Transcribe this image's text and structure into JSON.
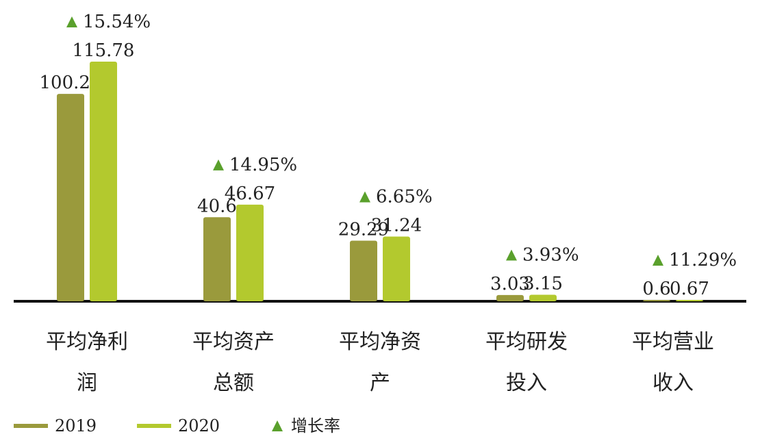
{
  "chart_data": {
    "type": "bar",
    "categories": [
      "平均净利润",
      "平均资产总额",
      "平均净资产",
      "平均研发投入",
      "平均营业收入"
    ],
    "series": [
      {
        "name": "2019",
        "color": "#9a9a3c",
        "values": [
          100.21,
          40.6,
          29.29,
          3.03,
          0.6
        ]
      },
      {
        "name": "2020",
        "color": "#b3c92e",
        "values": [
          115.78,
          46.67,
          31.24,
          3.15,
          0.67
        ]
      }
    ],
    "growth": {
      "name": "增长率",
      "color": "#5aa02c",
      "values": [
        15.54,
        14.95,
        6.65,
        3.93,
        11.29
      ],
      "value_labels": [
        "15.54%",
        "14.95%",
        "6.65%",
        "3.93%",
        "11.29%"
      ]
    }
  }
}
